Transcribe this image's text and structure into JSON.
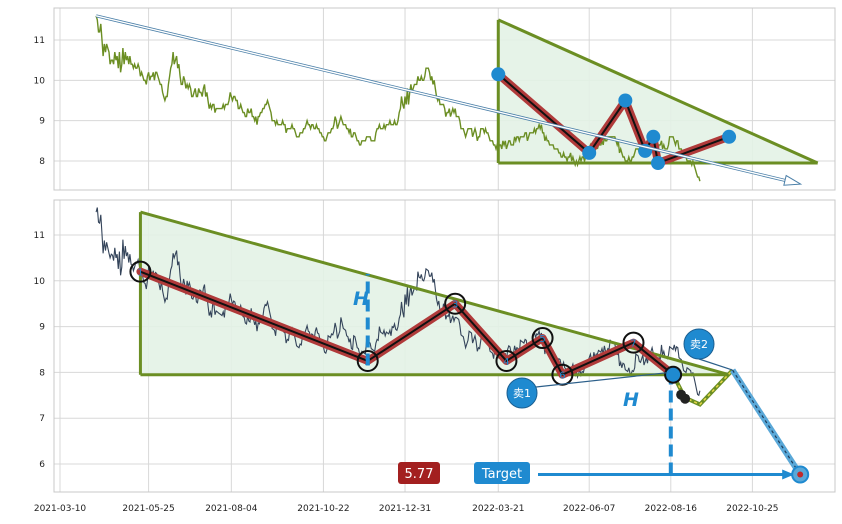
{
  "colors": {
    "price_top": "#6b8e23",
    "price_bottom": "#34445a",
    "triangle": "#6b8e23",
    "triangle_fill": "#e3f2e6",
    "zigzag_outer": "#b03a3a",
    "zigzag_inner": "#111111",
    "pivot_blue": "#1f8ad0",
    "target_blue": "#1f8ad0",
    "price_box": "#a32020"
  },
  "annotations": {
    "h_label_1": "H",
    "h_label_2": "H",
    "target_label": "Target",
    "target_price": "5.77",
    "sell1": "卖1",
    "sell2": "卖2",
    "pivots": [
      "1",
      "2",
      "3",
      "4",
      "5",
      "6",
      "7"
    ]
  },
  "chart_data": [
    {
      "type": "line",
      "panel": "top",
      "series": [
        {
          "values_ref": "close_prices"
        }
      ],
      "yticks": [
        "8",
        "9",
        "10",
        "11"
      ],
      "ylim": [
        7.3,
        11.8
      ],
      "xlim": [
        "2021-03-10",
        "2022-12-22"
      ],
      "grid": true,
      "pattern": {
        "type": "descending-triangle",
        "upper_start": [
          "2022-03-21",
          11.5
        ],
        "upper_end": [
          "2022-12-20",
          7.95
        ],
        "lower": 7.95,
        "pivots": [
          [
            "2022-03-21",
            10.15
          ],
          [
            "2022-06-07",
            8.2
          ],
          [
            "2022-07-08",
            9.5
          ],
          [
            "2022-07-25",
            8.25
          ],
          [
            "2022-08-01",
            8.6
          ],
          [
            "2022-08-05",
            7.95
          ],
          [
            "2022-10-05",
            8.6
          ]
        ],
        "trend_arrow": [
          [
            "2021-04-10",
            11.6
          ],
          [
            "2022-12-02",
            7.45
          ]
        ]
      }
    },
    {
      "type": "line",
      "panel": "bottom",
      "xticks": [
        "2021-03-10",
        "2021-05-25",
        "2021-08-04",
        "2021-10-22",
        "2021-12-31",
        "2022-03-21",
        "2022-06-07",
        "2022-08-16",
        "2022-10-25"
      ],
      "yticks": [
        "6",
        "7",
        "8",
        "9",
        "10",
        "11"
      ],
      "ylim": [
        5.2,
        11.8
      ],
      "xlim": [
        "2021-03-10",
        "2022-12-22"
      ],
      "grid": true,
      "pattern": {
        "type": "descending-triangle",
        "upper_start": [
          "2021-05-18",
          11.5
        ],
        "upper_end": [
          "2022-10-05",
          7.95
        ],
        "lower": 7.95,
        "pivots": [
          [
            "2021-05-18",
            10.2
          ],
          [
            "2021-11-29",
            8.25
          ],
          [
            "2022-02-12",
            9.5
          ],
          [
            "2022-03-28",
            8.25
          ],
          [
            "2022-04-28",
            8.75
          ],
          [
            "2022-05-15",
            7.95
          ],
          [
            "2022-07-15",
            8.65
          ],
          [
            "2022-08-18",
            7.95
          ]
        ],
        "projection": [
          [
            "2022-08-18",
            7.95
          ],
          [
            "2022-08-28",
            7.45
          ],
          [
            "2022-09-10",
            7.3
          ],
          [
            "2022-10-08",
            8.05
          ]
        ],
        "target_line": [
          [
            "2022-10-08",
            8.05
          ],
          [
            "2022-12-05",
            5.77
          ]
        ],
        "target": 5.77,
        "height_marker_1": {
          "x": "2021-11-29",
          "from": 8.15,
          "to": 10.15
        },
        "height_marker_2": {
          "x": "2022-08-16",
          "from": 5.77,
          "to": 7.95
        }
      }
    }
  ],
  "close_prices": {
    "start": "2021-04-10",
    "step_days": 1,
    "values": [
      11.6,
      11.5,
      11.2,
      11.2,
      11.4,
      11.0,
      10.6,
      10.9,
      10.7,
      10.9,
      10.8,
      10.7,
      10.4,
      10.5,
      10.5,
      10.4,
      10.7,
      10.5,
      10.6,
      10.3,
      10.7,
      10.2,
      10.4,
      10.8,
      10.4,
      10.7,
      10.5,
      10.6,
      10.4,
      10.6,
      10.4,
      10.4,
      10.3,
      10.4,
      10.3,
      10.3,
      10.4,
      10.3,
      10.1,
      10.2,
      10.1,
      10.0,
      10.0,
      9.9,
      10.1,
      10.2,
      10.0,
      10.1,
      10.1,
      10.2,
      10.0,
      10.2,
      10.2,
      10.1,
      10.0,
      9.9,
      9.9,
      9.7,
      9.6,
      9.5,
      9.6,
      9.6,
      9.9,
      10.1,
      10.3,
      10.4,
      10.7,
      10.4,
      10.5,
      10.6,
      10.3,
      10.4,
      10.1,
      9.9,
      9.9,
      10.1,
      10.0,
      9.8,
      9.9,
      9.8,
      9.9,
      9.8,
      9.6,
      9.6,
      9.7,
      9.8,
      9.6,
      9.6,
      9.8,
      9.7,
      9.7,
      9.6,
      9.8,
      9.9,
      9.6,
      9.7,
      9.5,
      9.3,
      9.4,
      9.3,
      9.4,
      9.4,
      9.2,
      9.3,
      9.3,
      9.3,
      9.3,
      9.3,
      9.3,
      9.4,
      9.3,
      9.4,
      9.4,
      9.4,
      9.5,
      9.7,
      9.6,
      9.5,
      9.6,
      9.6,
      9.5,
      9.5,
      9.3,
      9.3,
      9.4,
      9.3,
      9.2,
      9.2,
      9.1,
      9.1,
      9.3,
      9.2,
      9.2,
      9.3,
      9.1,
      9.1,
      9.0,
      9.1,
      8.9,
      9.1,
      9.1,
      9.2,
      9.2,
      9.3,
      9.3,
      9.4,
      9.4,
      9.5,
      9.4,
      9.3,
      9.2,
      9.0,
      9.0,
      9.0,
      8.9,
      9.0,
      8.9,
      8.9,
      8.9,
      8.9,
      9.0,
      8.9,
      8.9,
      8.7,
      8.8,
      8.8,
      8.8,
      8.8,
      8.9,
      8.8,
      8.8,
      8.7,
      8.6,
      8.6,
      8.6,
      8.7,
      8.7,
      8.7,
      8.8,
      8.8,
      8.9,
      9.0,
      8.9,
      8.9,
      8.8,
      8.9,
      8.9,
      8.8,
      8.8,
      8.9,
      8.8,
      8.8,
      8.7,
      8.7,
      8.6,
      8.6,
      8.5,
      8.5,
      8.6,
      8.7,
      8.7,
      8.7,
      8.8,
      8.8,
      8.9,
      9.1,
      9.0,
      8.8,
      8.9,
      9.0,
      9.1,
      9.0,
      8.9,
      8.9,
      8.9,
      8.8,
      8.8,
      8.7,
      8.8,
      8.6,
      8.6,
      8.7,
      8.7,
      8.6,
      8.5,
      8.5,
      8.4,
      8.4,
      8.5,
      8.5,
      8.5,
      8.5,
      8.6,
      8.6,
      8.6,
      8.6,
      8.5,
      8.5,
      8.5,
      8.5,
      8.7,
      8.8,
      8.8,
      8.9,
      8.8,
      8.8,
      8.8,
      8.9,
      8.8,
      8.9,
      8.9,
      8.9,
      9.0,
      8.9,
      8.9,
      8.9,
      9.0,
      8.9,
      8.9,
      9.0,
      9.2,
      9.3,
      9.6,
      9.4,
      9.3,
      9.6,
      9.4,
      9.8,
      9.4,
      9.7,
      9.9,
      9.7,
      9.8,
      9.9,
      9.9,
      9.9,
      10.1,
      10.0,
      10.0,
      10.1,
      10.0,
      10.0,
      10.1,
      10.3,
      10.3,
      10.3,
      10.2,
      10.0,
      10.1,
      9.9,
      10.0,
      9.8,
      9.6,
      9.5,
      9.6,
      9.4,
      9.4,
      9.4,
      9.4,
      9.3,
      9.1,
      9.2,
      9.2,
      9.3,
      9.1,
      9.2,
      9.3,
      9.2,
      9.3,
      9.1,
      9.1,
      9.1,
      9.0,
      8.8,
      8.8,
      8.8,
      8.7,
      8.6,
      8.7,
      8.8,
      8.8,
      8.8,
      8.8,
      8.6,
      8.7,
      8.8,
      8.7,
      8.5,
      8.6,
      8.6,
      8.8,
      8.8,
      8.8,
      8.7,
      8.8,
      8.7,
      8.7,
      8.6,
      8.5,
      8.5,
      8.5,
      8.4,
      8.4,
      8.3,
      8.4,
      8.3,
      8.4,
      8.4,
      8.3,
      8.5,
      8.4,
      8.5,
      8.3,
      8.4,
      8.5,
      8.5,
      8.4,
      8.4,
      8.4,
      8.6,
      8.5,
      8.6,
      8.6,
      8.5,
      8.6,
      8.6,
      8.6,
      8.6,
      8.7,
      8.7,
      8.5,
      8.6,
      8.7,
      8.7,
      8.7,
      8.7,
      8.8,
      8.7,
      8.8,
      8.8,
      8.9,
      8.8,
      8.9,
      8.7,
      8.7,
      8.5,
      8.6,
      8.5,
      8.5,
      8.4,
      8.4,
      8.4,
      8.4,
      8.3,
      8.3,
      8.3,
      8.3,
      8.2,
      8.2,
      8.1,
      8.1,
      8.2,
      8.1,
      8.1,
      8.0,
      8.1,
      8.1,
      8.2,
      8.0,
      8.1,
      8.0,
      7.9,
      8.0,
      7.9,
      8.0,
      8.1,
      8.0,
      8.1,
      8.1,
      8.0,
      8.1,
      8.2,
      8.2,
      8.3,
      8.4,
      8.3,
      8.3,
      8.5,
      8.4,
      8.5,
      8.3,
      8.4,
      8.4,
      8.4,
      8.5,
      8.4,
      8.6,
      8.5,
      8.5,
      8.6,
      8.6,
      8.6,
      8.6,
      8.6,
      8.6,
      8.6,
      8.5,
      8.4,
      8.5,
      8.2,
      8.3,
      8.2,
      8.1,
      8.1,
      8.0,
      8.0,
      8.0,
      8.1,
      8.0,
      8.0,
      8.1,
      8.1,
      8.2,
      8.3,
      8.3,
      8.3,
      8.2,
      8.2,
      8.3,
      8.4,
      8.2,
      8.3,
      8.4,
      8.3,
      8.3,
      8.3,
      8.4,
      8.5,
      8.4,
      8.4,
      8.3,
      8.3,
      8.3,
      8.4,
      8.4,
      8.5,
      8.3,
      8.4,
      8.3,
      8.3,
      8.3,
      8.4,
      8.6,
      8.6,
      8.6,
      8.6,
      8.5,
      8.4,
      8.5,
      8.5,
      8.3,
      8.3,
      8.3,
      8.2,
      8.1,
      8.1,
      8.1,
      8.0,
      8.0,
      8.0,
      8.0,
      7.9,
      8.0,
      7.9,
      7.8,
      7.7,
      7.6,
      7.6,
      7.5
    ]
  }
}
